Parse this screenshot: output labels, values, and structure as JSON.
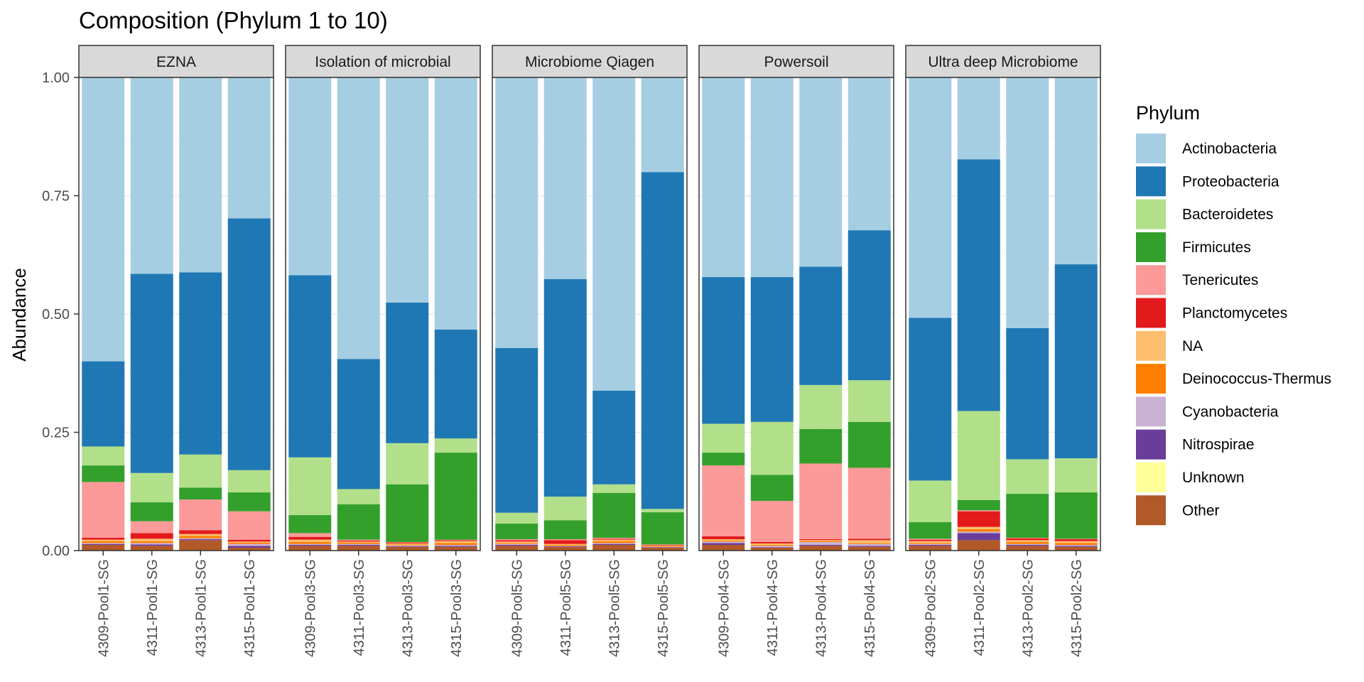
{
  "chart_data": {
    "type": "bar",
    "stacked": true,
    "title": "Composition (Phylum 1 to 10)",
    "xlabel": "",
    "ylabel": "Abundance",
    "ylim": [
      0,
      1
    ],
    "yticks": [
      "0.00",
      "0.25",
      "0.50",
      "0.75",
      "1.00"
    ],
    "ytick_values": [
      0,
      0.25,
      0.5,
      0.75,
      1
    ],
    "grid": true,
    "legend": {
      "title": "Phylum",
      "position": "right",
      "entries": [
        "Actinobacteria",
        "Proteobacteria",
        "Bacteroidetes",
        "Firmicutes",
        "Tenericutes",
        "Planctomycetes",
        "NA",
        "Deinococcus-Thermus",
        "Cyanobacteria",
        "Nitrospirae",
        "Unknown",
        "Other"
      ]
    },
    "colors": {
      "Actinobacteria": "#a6cee3",
      "Proteobacteria": "#1f78b4",
      "Bacteroidetes": "#b2df8a",
      "Firmicutes": "#33a02c",
      "Tenericutes": "#fb9a99",
      "Planctomycetes": "#e31a1c",
      "NA": "#fdbf6f",
      "Deinococcus-Thermus": "#ff7f00",
      "Cyanobacteria": "#cab2d6",
      "Nitrospirae": "#6a3d9a",
      "Unknown": "#ffff99",
      "Other": "#b15928"
    },
    "stack_order": [
      "Other",
      "Unknown",
      "Nitrospirae",
      "Cyanobacteria",
      "Deinococcus-Thermus",
      "NA",
      "Planctomycetes",
      "Tenericutes",
      "Firmicutes",
      "Bacteroidetes",
      "Proteobacteria",
      "Actinobacteria"
    ],
    "panels": [
      {
        "name": "EZNA",
        "samples": [
          {
            "name": "4309-Pool1-SG",
            "values": {
              "Other": 0.012,
              "Unknown": 0,
              "Nitrospirae": 0.002,
              "Cyanobacteria": 0.002,
              "Deinococcus-Thermus": 0.004,
              "NA": 0.003,
              "Planctomycetes": 0.004,
              "Tenericutes": 0.118,
              "Firmicutes": 0.035,
              "Bacteroidetes": 0.04,
              "Proteobacteria": 0.18,
              "Actinobacteria": 0.6
            }
          },
          {
            "name": "4311-Pool1-SG",
            "values": {
              "Other": 0.01,
              "Unknown": 0,
              "Nitrospirae": 0.003,
              "Cyanobacteria": 0.003,
              "Deinococcus-Thermus": 0.004,
              "NA": 0.005,
              "Planctomycetes": 0.012,
              "Tenericutes": 0.025,
              "Firmicutes": 0.04,
              "Bacteroidetes": 0.062,
              "Proteobacteria": 0.421,
              "Actinobacteria": 0.415
            }
          },
          {
            "name": "4313-Pool1-SG",
            "values": {
              "Other": 0.022,
              "Unknown": 0,
              "Nitrospirae": 0.002,
              "Cyanobacteria": 0.002,
              "Deinococcus-Thermus": 0.005,
              "NA": 0.004,
              "Planctomycetes": 0.008,
              "Tenericutes": 0.065,
              "Firmicutes": 0.025,
              "Bacteroidetes": 0.07,
              "Proteobacteria": 0.385,
              "Actinobacteria": 0.412
            }
          },
          {
            "name": "4315-Pool1-SG",
            "values": {
              "Other": 0.006,
              "Unknown": 0,
              "Nitrospirae": 0.004,
              "Cyanobacteria": 0.004,
              "Deinococcus-Thermus": 0.003,
              "NA": 0.002,
              "Planctomycetes": 0.004,
              "Tenericutes": 0.06,
              "Firmicutes": 0.04,
              "Bacteroidetes": 0.047,
              "Proteobacteria": 0.532,
              "Actinobacteria": 0.298
            }
          }
        ]
      },
      {
        "name": "Isolation of microbial",
        "samples": [
          {
            "name": "4309-Pool3-SG",
            "values": {
              "Other": 0.01,
              "Unknown": 0,
              "Nitrospirae": 0.002,
              "Cyanobacteria": 0.002,
              "Deinococcus-Thermus": 0.004,
              "NA": 0.005,
              "Planctomycetes": 0.006,
              "Tenericutes": 0.008,
              "Firmicutes": 0.038,
              "Bacteroidetes": 0.122,
              "Proteobacteria": 0.385,
              "Actinobacteria": 0.418
            }
          },
          {
            "name": "4311-Pool3-SG",
            "values": {
              "Other": 0.01,
              "Unknown": 0,
              "Nitrospirae": 0.002,
              "Cyanobacteria": 0.002,
              "Deinococcus-Thermus": 0.003,
              "NA": 0.002,
              "Planctomycetes": 0.002,
              "Tenericutes": 0.002,
              "Firmicutes": 0.075,
              "Bacteroidetes": 0.032,
              "Proteobacteria": 0.275,
              "Actinobacteria": 0.595
            }
          },
          {
            "name": "4313-Pool3-SG",
            "values": {
              "Other": 0.008,
              "Unknown": 0,
              "Nitrospirae": 0.001,
              "Cyanobacteria": 0.002,
              "Deinococcus-Thermus": 0.002,
              "NA": 0.002,
              "Planctomycetes": 0.002,
              "Tenericutes": 0.001,
              "Firmicutes": 0.122,
              "Bacteroidetes": 0.087,
              "Proteobacteria": 0.297,
              "Actinobacteria": 0.476
            }
          },
          {
            "name": "4315-Pool3-SG",
            "values": {
              "Other": 0.008,
              "Unknown": 0,
              "Nitrospirae": 0.002,
              "Cyanobacteria": 0.002,
              "Deinococcus-Thermus": 0.004,
              "NA": 0.004,
              "Planctomycetes": 0.002,
              "Tenericutes": 0.001,
              "Firmicutes": 0.184,
              "Bacteroidetes": 0.03,
              "Proteobacteria": 0.23,
              "Actinobacteria": 0.533
            }
          }
        ]
      },
      {
        "name": "Microbiome Qiagen",
        "samples": [
          {
            "name": "4309-Pool5-SG",
            "values": {
              "Other": 0.01,
              "Unknown": 0,
              "Nitrospirae": 0.002,
              "Cyanobacteria": 0.002,
              "Deinococcus-Thermus": 0.002,
              "NA": 0.003,
              "Planctomycetes": 0.003,
              "Tenericutes": 0.002,
              "Firmicutes": 0.033,
              "Bacteroidetes": 0.023,
              "Proteobacteria": 0.348,
              "Actinobacteria": 0.572
            }
          },
          {
            "name": "4311-Pool5-SG",
            "values": {
              "Other": 0.008,
              "Unknown": 0,
              "Nitrospirae": 0.001,
              "Cyanobacteria": 0.001,
              "Deinococcus-Thermus": 0.002,
              "NA": 0.002,
              "Planctomycetes": 0.008,
              "Tenericutes": 0.002,
              "Firmicutes": 0.04,
              "Bacteroidetes": 0.05,
              "Proteobacteria": 0.46,
              "Actinobacteria": 0.426
            }
          },
          {
            "name": "4313-Pool5-SG",
            "values": {
              "Other": 0.012,
              "Unknown": 0,
              "Nitrospirae": 0.002,
              "Cyanobacteria": 0.002,
              "Deinococcus-Thermus": 0.004,
              "NA": 0.003,
              "Planctomycetes": 0.002,
              "Tenericutes": 0.002,
              "Firmicutes": 0.095,
              "Bacteroidetes": 0.018,
              "Proteobacteria": 0.198,
              "Actinobacteria": 0.662
            }
          },
          {
            "name": "4315-Pool5-SG",
            "values": {
              "Other": 0.006,
              "Unknown": 0,
              "Nitrospirae": 0.001,
              "Cyanobacteria": 0.001,
              "Deinococcus-Thermus": 0.002,
              "NA": 0.001,
              "Planctomycetes": 0.001,
              "Tenericutes": 0.001,
              "Firmicutes": 0.068,
              "Bacteroidetes": 0.007,
              "Proteobacteria": 0.712,
              "Actinobacteria": 0.2
            }
          }
        ]
      },
      {
        "name": "Powersoil",
        "samples": [
          {
            "name": "4309-Pool4-SG",
            "values": {
              "Other": 0.012,
              "Unknown": 0,
              "Nitrospirae": 0.004,
              "Cyanobacteria": 0.003,
              "Deinococcus-Thermus": 0.002,
              "NA": 0.003,
              "Planctomycetes": 0.006,
              "Tenericutes": 0.15,
              "Firmicutes": 0.027,
              "Bacteroidetes": 0.061,
              "Proteobacteria": 0.31,
              "Actinobacteria": 0.422
            }
          },
          {
            "name": "4311-Pool4-SG",
            "values": {
              "Other": 0.006,
              "Unknown": 0,
              "Nitrospirae": 0.001,
              "Cyanobacteria": 0.003,
              "Deinococcus-Thermus": 0.002,
              "NA": 0.003,
              "Planctomycetes": 0.003,
              "Tenericutes": 0.087,
              "Firmicutes": 0.055,
              "Bacteroidetes": 0.112,
              "Proteobacteria": 0.306,
              "Actinobacteria": 0.422
            }
          },
          {
            "name": "4313-Pool4-SG",
            "values": {
              "Other": 0.01,
              "Unknown": 0,
              "Nitrospirae": 0.002,
              "Cyanobacteria": 0.006,
              "Deinococcus-Thermus": 0.002,
              "NA": 0.002,
              "Planctomycetes": 0.002,
              "Tenericutes": 0.16,
              "Firmicutes": 0.073,
              "Bacteroidetes": 0.093,
              "Proteobacteria": 0.25,
              "Actinobacteria": 0.4
            }
          },
          {
            "name": "4315-Pool4-SG",
            "values": {
              "Other": 0.008,
              "Unknown": 0,
              "Nitrospirae": 0.002,
              "Cyanobacteria": 0.004,
              "Deinococcus-Thermus": 0.002,
              "NA": 0.006,
              "Planctomycetes": 0.003,
              "Tenericutes": 0.15,
              "Firmicutes": 0.097,
              "Bacteroidetes": 0.088,
              "Proteobacteria": 0.317,
              "Actinobacteria": 0.323
            }
          }
        ]
      },
      {
        "name": "Ultra deep Microbiome",
        "samples": [
          {
            "name": "4309-Pool2-SG",
            "values": {
              "Other": 0.01,
              "Unknown": 0,
              "Nitrospirae": 0.002,
              "Cyanobacteria": 0.002,
              "Deinococcus-Thermus": 0.002,
              "NA": 0.004,
              "Planctomycetes": 0.003,
              "Tenericutes": 0.002,
              "Firmicutes": 0.035,
              "Bacteroidetes": 0.088,
              "Proteobacteria": 0.344,
              "Actinobacteria": 0.508
            }
          },
          {
            "name": "4311-Pool2-SG",
            "values": {
              "Other": 0.022,
              "Unknown": 0,
              "Nitrospirae": 0.015,
              "Cyanobacteria": 0.003,
              "Deinococcus-Thermus": 0.005,
              "NA": 0.005,
              "Planctomycetes": 0.033,
              "Tenericutes": 0.002,
              "Firmicutes": 0.022,
              "Bacteroidetes": 0.188,
              "Proteobacteria": 0.532,
              "Actinobacteria": 0.173
            }
          },
          {
            "name": "4313-Pool2-SG",
            "values": {
              "Other": 0.01,
              "Unknown": 0,
              "Nitrospirae": 0.002,
              "Cyanobacteria": 0.002,
              "Deinococcus-Thermus": 0.004,
              "NA": 0.004,
              "Planctomycetes": 0.004,
              "Tenericutes": 0.001,
              "Firmicutes": 0.093,
              "Bacteroidetes": 0.073,
              "Proteobacteria": 0.277,
              "Actinobacteria": 0.53
            }
          },
          {
            "name": "4315-Pool2-SG",
            "values": {
              "Other": 0.008,
              "Unknown": 0,
              "Nitrospirae": 0.002,
              "Cyanobacteria": 0.002,
              "Deinococcus-Thermus": 0.004,
              "NA": 0.004,
              "Planctomycetes": 0.004,
              "Tenericutes": 0.001,
              "Firmicutes": 0.098,
              "Bacteroidetes": 0.072,
              "Proteobacteria": 0.41,
              "Actinobacteria": 0.395
            }
          }
        ]
      }
    ]
  }
}
